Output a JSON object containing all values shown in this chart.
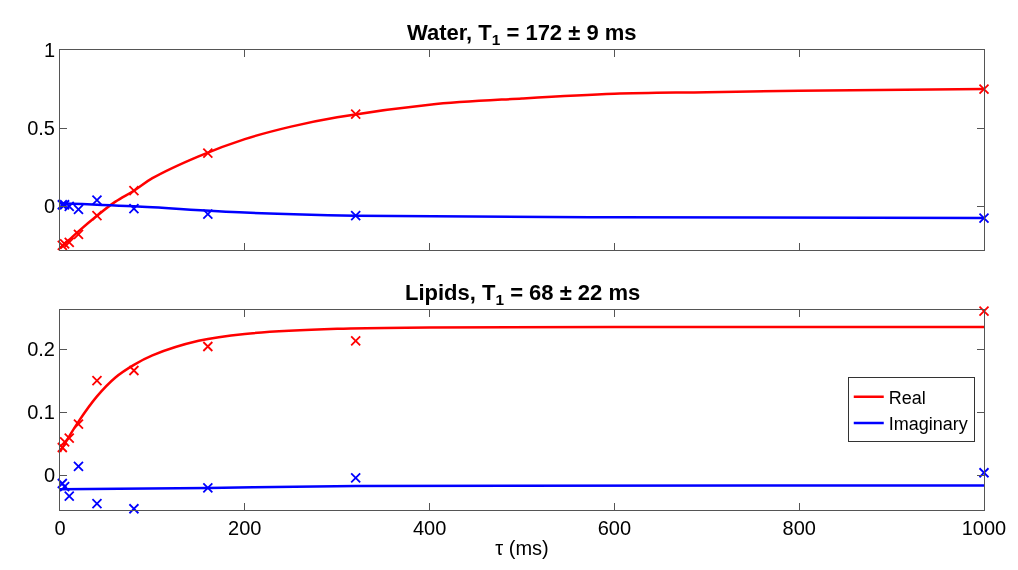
{
  "chart_data": [
    {
      "type": "scatter",
      "title": "Water, T$_{1}$ = 172 ± 9 ms",
      "xlim": [
        0,
        1000
      ],
      "xticks": [
        0,
        200,
        400,
        600,
        800,
        1000
      ],
      "ylim": [
        -0.28,
        1
      ],
      "yticks": [
        0,
        0.5,
        1
      ],
      "tick_labels": "y",
      "series": [
        {
          "color": "#ff0000",
          "marker": "cross",
          "x": [
            2.5,
            5,
            10,
            20,
            40,
            80,
            160,
            320,
            1000
          ],
          "values": [
            -0.25,
            -0.24,
            -0.23,
            -0.18,
            -0.06,
            0.1,
            0.34,
            0.59,
            0.75
          ]
        },
        {
          "color": "#0000ff",
          "marker": "cross",
          "x": [
            2.5,
            5,
            10,
            20,
            40,
            80,
            160,
            320,
            1000
          ],
          "values": [
            0.01,
            0.01,
            0.0,
            -0.02,
            0.04,
            -0.015,
            -0.05,
            -0.06,
            -0.075
          ]
        },
        {
          "type": "line",
          "color": "#ff0000",
          "line_style": "solid",
          "marker": "none",
          "x": [
            0,
            20,
            40,
            60,
            80,
            100,
            150,
            200,
            250,
            300,
            400,
            500,
            600,
            700,
            800,
            1000
          ],
          "values": [
            -0.27,
            -0.16,
            -0.06,
            0.03,
            0.1,
            0.18,
            0.32,
            0.43,
            0.51,
            0.57,
            0.65,
            0.69,
            0.72,
            0.73,
            0.74,
            0.75
          ]
        },
        {
          "type": "line",
          "color": "#0000ff",
          "line_style": "solid",
          "marker": "none",
          "x": [
            0,
            80,
            200,
            320,
            600,
            1000
          ],
          "values": [
            0.02,
            0.0,
            -0.04,
            -0.06,
            -0.07,
            -0.075
          ]
        }
      ]
    },
    {
      "type": "scatter",
      "title": "Lipids, T$_{1}$ = 68 ± 22 ms",
      "xlabel": "τ (ms)",
      "xlim": [
        0,
        1000
      ],
      "xticks": [
        0,
        200,
        400,
        600,
        800,
        1000
      ],
      "ylim": [
        -0.055,
        0.262
      ],
      "yticks": [
        0,
        0.1,
        0.2
      ],
      "legend": "right",
      "series": [
        {
          "color": "#ff0000",
          "marker": "cross",
          "x": [
            2.5,
            5,
            10,
            20,
            40,
            80,
            160,
            320,
            1000
          ],
          "values": [
            0.044,
            0.053,
            0.059,
            0.081,
            0.15,
            0.166,
            0.204,
            0.213,
            0.26
          ]
        },
        {
          "color": "#0000ff",
          "marker": "cross",
          "x": [
            2.5,
            5,
            10,
            20,
            40,
            80,
            160,
            320,
            1000
          ],
          "values": [
            -0.013,
            -0.018,
            -0.033,
            0.014,
            -0.045,
            -0.053,
            -0.02,
            -0.004,
            0.004
          ]
        },
        {
          "type": "line",
          "name": "Real",
          "color": "#ff0000",
          "line_style": "solid",
          "marker": "none",
          "x": [
            0,
            20,
            40,
            60,
            80,
            100,
            150,
            200,
            300,
            400,
            600,
            1000
          ],
          "values": [
            0.037,
            0.085,
            0.125,
            0.155,
            0.175,
            0.19,
            0.213,
            0.224,
            0.232,
            0.234,
            0.235,
            0.235
          ]
        },
        {
          "type": "line",
          "name": "Imaginary",
          "color": "#0000ff",
          "line_style": "solid",
          "marker": "none",
          "x": [
            0,
            160,
            320,
            1000
          ],
          "values": [
            -0.022,
            -0.02,
            -0.017,
            -0.016
          ]
        }
      ]
    }
  ]
}
